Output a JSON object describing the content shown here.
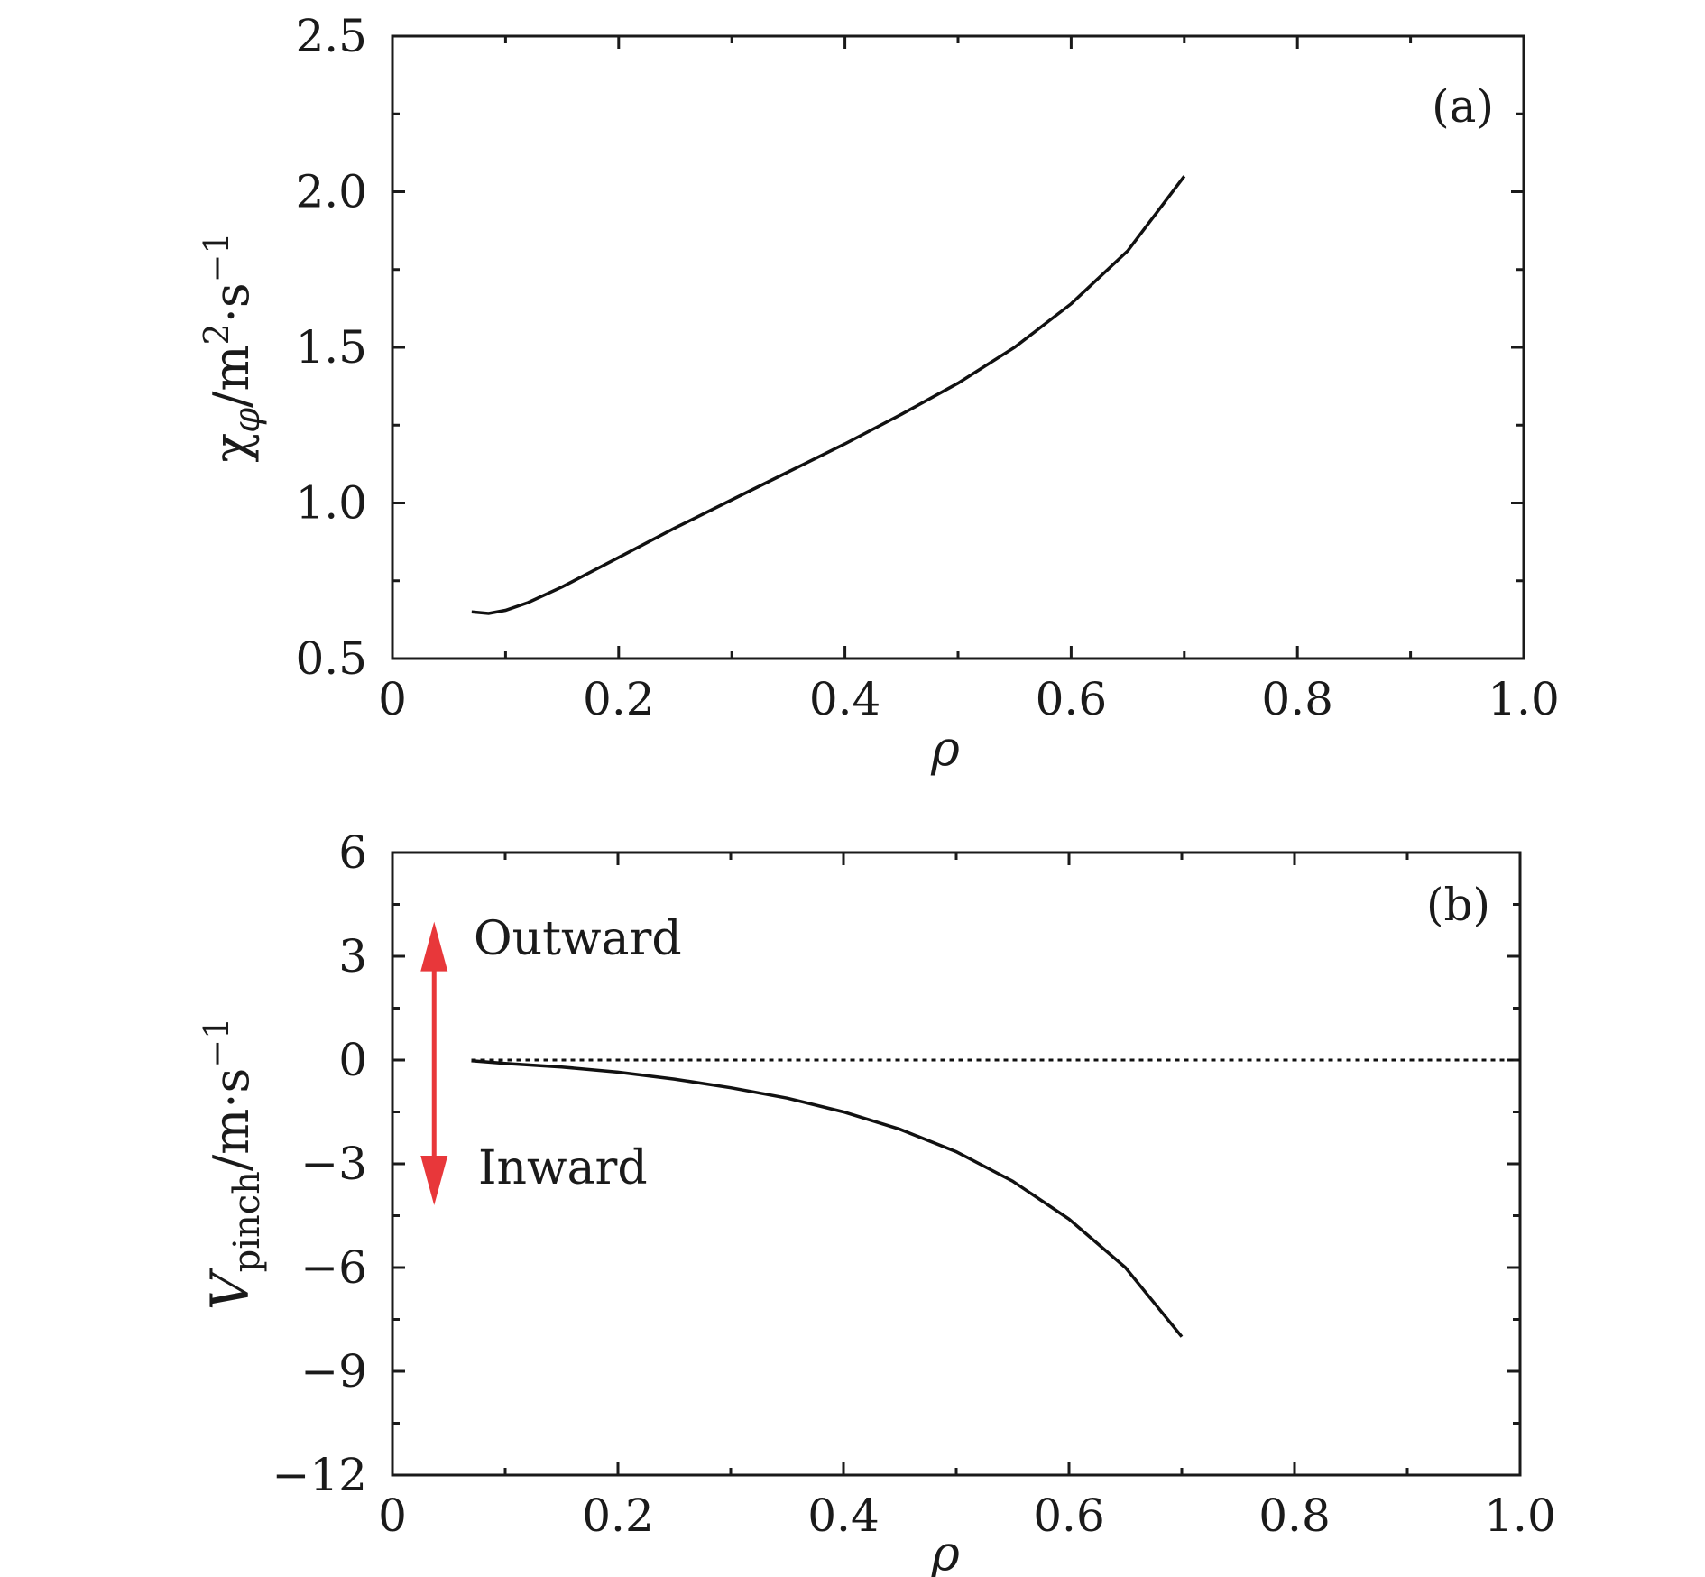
{
  "chart_data": [
    {
      "panel": "(a)",
      "type": "line",
      "xlabel": "ρ",
      "ylabel": "χ",
      "ylabel_sub": "φ",
      "ylabel_unit": "/m",
      "ylabel_unit_sup": "2",
      "ylabel_unit_tail": "·s",
      "ylabel_unit_tail_sup": "−1",
      "xlim": [
        0,
        1.0
      ],
      "ylim": [
        0.5,
        2.5
      ],
      "xticks": [
        0,
        0.2,
        0.4,
        0.6,
        0.8,
        1.0
      ],
      "xtick_labels": [
        "0",
        "0.2",
        "0.4",
        "0.6",
        "0.8",
        "1.0"
      ],
      "yticks": [
        0.5,
        1.0,
        1.5,
        2.0,
        2.5
      ],
      "ytick_labels": [
        "0.5",
        "1.0",
        "1.5",
        "2.0",
        "2.5"
      ],
      "series": [
        {
          "name": "chi_phi",
          "color": "#111111",
          "x": [
            0.07,
            0.085,
            0.1,
            0.12,
            0.15,
            0.2,
            0.25,
            0.3,
            0.35,
            0.4,
            0.45,
            0.5,
            0.55,
            0.6,
            0.65,
            0.7
          ],
          "y": [
            0.65,
            0.645,
            0.655,
            0.68,
            0.73,
            0.825,
            0.92,
            1.01,
            1.1,
            1.19,
            1.285,
            1.385,
            1.5,
            1.64,
            1.81,
            2.05
          ]
        }
      ]
    },
    {
      "panel": "(b)",
      "type": "line",
      "xlabel": "ρ",
      "ylabel": "V",
      "ylabel_sub": "pinch",
      "ylabel_unit": "/m·s",
      "ylabel_unit_sup": "−1",
      "xlim": [
        0,
        1.0
      ],
      "ylim": [
        -12,
        6
      ],
      "xticks": [
        0,
        0.2,
        0.4,
        0.6,
        0.8,
        1.0
      ],
      "xtick_labels": [
        "0",
        "0.2",
        "0.4",
        "0.6",
        "0.8",
        "1.0"
      ],
      "yticks": [
        -12,
        -9,
        -6,
        -3,
        0,
        3,
        6
      ],
      "ytick_labels": [
        "−12",
        "−9",
        "−6",
        "−3",
        "0",
        "3",
        "6"
      ],
      "zero_line": {
        "y": 0,
        "style": "dotted",
        "x_range": [
          0.07,
          1.0
        ]
      },
      "series": [
        {
          "name": "V_pinch",
          "color": "#111111",
          "x": [
            0.07,
            0.1,
            0.15,
            0.2,
            0.25,
            0.3,
            0.35,
            0.4,
            0.45,
            0.5,
            0.55,
            0.6,
            0.65,
            0.7
          ],
          "y": [
            -0.02,
            -0.1,
            -0.2,
            -0.35,
            -0.55,
            -0.8,
            -1.1,
            -1.5,
            -2.0,
            -2.65,
            -3.5,
            -4.6,
            -6.0,
            -8.0
          ]
        }
      ],
      "annotations": [
        {
          "text": "Outward",
          "direction": "up",
          "arrow_color": "#e8373a",
          "arrow_x": 0.037,
          "arrow_y_range": [
            0,
            4.0
          ]
        },
        {
          "text": "Inward",
          "direction": "down",
          "arrow_color": "#e8373a",
          "arrow_x": 0.037,
          "arrow_y_range": [
            -4.2,
            0
          ]
        }
      ]
    }
  ]
}
